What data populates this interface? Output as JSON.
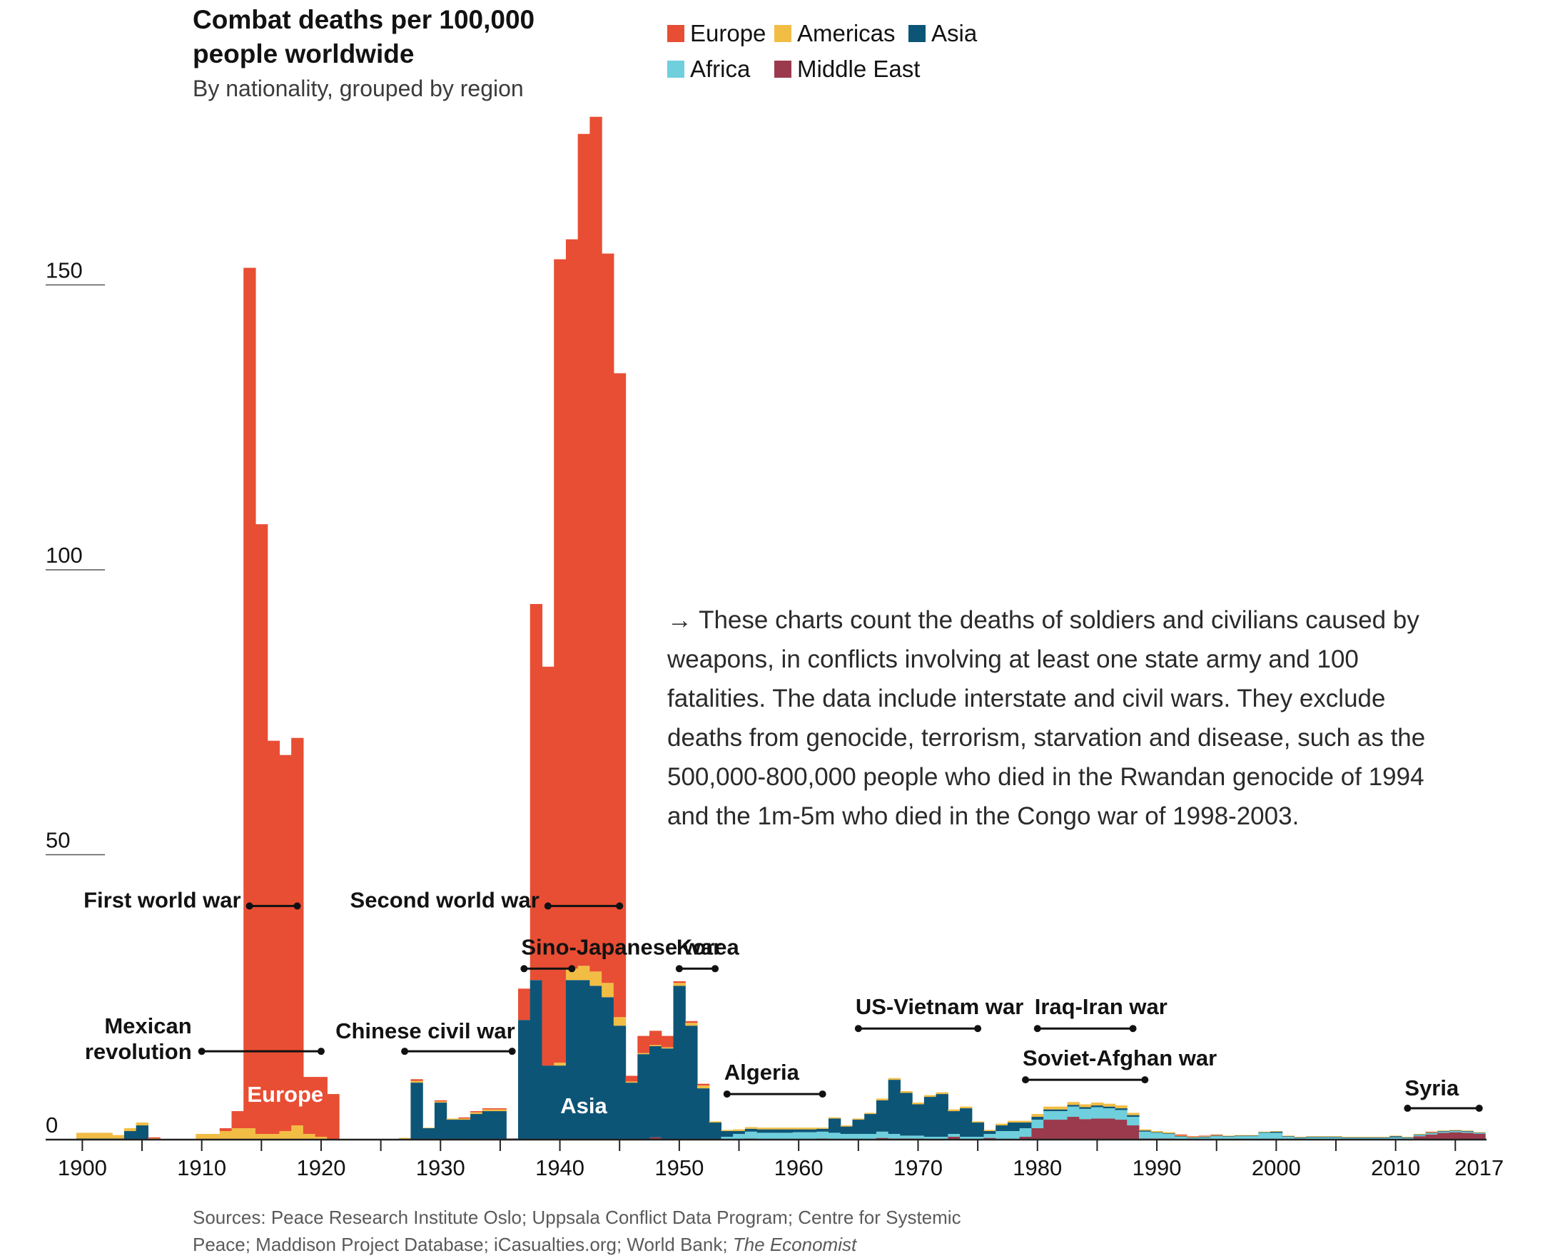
{
  "title": "Combat deaths per 100,000 people worldwide",
  "subtitle": "By nationality, grouped by region",
  "legend": [
    {
      "label": "Europe",
      "color": "#e84e34"
    },
    {
      "label": "Americas",
      "color": "#f2bd44"
    },
    {
      "label": "Asia",
      "color": "#0d5577"
    },
    {
      "label": "Africa",
      "color": "#6fcfdc"
    },
    {
      "label": "Middle East",
      "color": "#9b3a4d"
    }
  ],
  "note": "→ These charts count the deaths of soldiers and civilians caused by weapons, in conflicts involving at least one state army and 100 fatalities. The data include interstate and civil wars. They exclude deaths from genocide, terrorism, starvation and disease, such as the 500,000-800,000 people who died in the Rwandan genocide of 1994 and the 1m-5m who died in the Congo war of 1998-2003.",
  "source_prefix": "Sources: Peace Research Institute Oslo; Uppsala Conflict Data Program; Centre for Systemic Peace; Maddison Project Database; iCasualties.org; World Bank;",
  "source_italic": "The Economist",
  "chart_data": {
    "type": "area",
    "stacked": true,
    "title": "Combat deaths per 100,000 people worldwide",
    "subtitle": "By nationality, grouped by region",
    "xlim": [
      1900,
      2017
    ],
    "ylim": [
      0,
      200
    ],
    "y_ticks": [
      0,
      50,
      100,
      150
    ],
    "x_ticks": [
      1900,
      1910,
      1920,
      1930,
      1940,
      1950,
      1960,
      1970,
      1980,
      1990,
      2000,
      2010,
      2017
    ],
    "grid": false,
    "legend_position": "top",
    "x": [
      1900,
      1901,
      1902,
      1903,
      1904,
      1905,
      1906,
      1907,
      1908,
      1909,
      1910,
      1911,
      1912,
      1913,
      1914,
      1915,
      1916,
      1917,
      1918,
      1919,
      1920,
      1921,
      1922,
      1923,
      1924,
      1925,
      1926,
      1927,
      1928,
      1929,
      1930,
      1931,
      1932,
      1933,
      1934,
      1935,
      1936,
      1937,
      1938,
      1939,
      1940,
      1941,
      1942,
      1943,
      1944,
      1945,
      1946,
      1947,
      1948,
      1949,
      1950,
      1951,
      1952,
      1953,
      1954,
      1955,
      1956,
      1957,
      1958,
      1959,
      1960,
      1961,
      1962,
      1963,
      1964,
      1965,
      1966,
      1967,
      1968,
      1969,
      1970,
      1971,
      1972,
      1973,
      1974,
      1975,
      1976,
      1977,
      1978,
      1979,
      1980,
      1981,
      1982,
      1983,
      1984,
      1985,
      1986,
      1987,
      1988,
      1989,
      1990,
      1991,
      1992,
      1993,
      1994,
      1995,
      1996,
      1997,
      1998,
      1999,
      2000,
      2001,
      2002,
      2003,
      2004,
      2005,
      2006,
      2007,
      2008,
      2009,
      2010,
      2011,
      2012,
      2013,
      2014,
      2015,
      2016,
      2017
    ],
    "series": [
      {
        "name": "Middle East",
        "values": [
          0,
          0,
          0,
          0,
          0,
          0,
          0,
          0,
          0,
          0,
          0,
          0,
          0,
          0,
          0,
          0,
          0,
          0,
          0,
          0,
          0,
          0,
          0,
          0,
          0,
          0,
          0,
          0,
          0,
          0,
          0,
          0,
          0,
          0,
          0,
          0,
          0.2,
          0,
          0,
          0,
          0,
          0,
          0,
          0,
          0,
          0,
          0,
          0,
          0.4,
          0,
          0,
          0,
          0,
          0,
          0,
          0,
          0.2,
          0,
          0,
          0,
          0,
          0,
          0.2,
          0,
          0,
          0,
          0,
          0.3,
          0.2,
          0.2,
          0.2,
          0,
          0,
          0.5,
          0,
          0,
          0.3,
          0,
          0,
          0.5,
          2,
          3.5,
          3.5,
          4,
          3.6,
          3.7,
          3.7,
          3.5,
          2.5,
          0.2,
          0.2,
          0.2,
          0,
          0,
          0,
          0,
          0,
          0,
          0,
          0,
          0,
          0,
          0,
          0.1,
          0.1,
          0.1,
          0.1,
          0.1,
          0.1,
          0.1,
          0.1,
          0.1,
          0.6,
          0.9,
          1.2,
          1.3,
          1.2,
          1
        ]
      },
      {
        "name": "Africa",
        "values": [
          0.1,
          0.1,
          0.1,
          0,
          0,
          0,
          0,
          0,
          0,
          0,
          0,
          0,
          0,
          0,
          0,
          0,
          0,
          0,
          0,
          0,
          0,
          0,
          0,
          0,
          0,
          0,
          0,
          0,
          0,
          0,
          0,
          0,
          0,
          0,
          0,
          0,
          0,
          0,
          0,
          0,
          0,
          0,
          0,
          0,
          0,
          0,
          0,
          0,
          0,
          0,
          0,
          0,
          0,
          0,
          0.5,
          1,
          1.2,
          1.2,
          1.2,
          1.2,
          1.3,
          1.3,
          1.2,
          1.2,
          1,
          1,
          1,
          1.1,
          0.8,
          0.5,
          0.5,
          0.5,
          0.5,
          0.5,
          0.5,
          0.5,
          0.7,
          1.5,
          1.5,
          1.5,
          1.5,
          1.5,
          1.5,
          1.8,
          1.8,
          2,
          1.8,
          1.7,
          1.5,
          1.2,
          1,
          0.8,
          0.5,
          0.3,
          0.4,
          0.6,
          0.5,
          0.6,
          0.6,
          1.2,
          1.2,
          0.5,
          0.3,
          0.3,
          0.3,
          0.3,
          0.2,
          0.2,
          0.2,
          0.2,
          0.3,
          0.2,
          0.2,
          0.2,
          0.2,
          0.2,
          0.2,
          0.1
        ]
      },
      {
        "name": "Asia",
        "values": [
          0.1,
          0.1,
          0.1,
          0.2,
          1.5,
          2.5,
          0,
          0,
          0,
          0,
          0,
          0,
          0,
          0,
          0,
          0,
          0,
          0,
          0,
          0,
          0,
          0,
          0,
          0,
          0,
          0,
          0,
          0,
          10,
          2,
          6.5,
          3.5,
          3.5,
          4.5,
          5,
          5,
          0,
          21,
          28,
          13,
          13,
          28,
          28,
          27,
          25,
          20,
          10,
          15,
          16,
          16,
          27,
          20,
          9,
          3,
          1,
          0.5,
          0.5,
          0.6,
          0.6,
          0.6,
          0.5,
          0.5,
          0.5,
          2.5,
          1.3,
          2.5,
          3.5,
          5.5,
          9.5,
          7.5,
          5.5,
          7,
          7.5,
          4,
          5,
          2.5,
          0.5,
          1,
          1.5,
          1,
          0.5,
          0.3,
          0.3,
          0.3,
          0.3,
          0.3,
          0.3,
          0.3,
          0.3,
          0.2,
          0.1,
          0.1,
          0.1,
          0.1,
          0.1,
          0.1,
          0.1,
          0.1,
          0.1,
          0.1,
          0.2,
          0.1,
          0.1,
          0.1,
          0.1,
          0.1,
          0.1,
          0.1,
          0.1,
          0.1,
          0.2,
          0.1,
          0.1,
          0.1,
          0.1,
          0.1,
          0.1,
          0.1
        ]
      },
      {
        "name": "Americas",
        "values": [
          1,
          1,
          1,
          0.6,
          0.5,
          0.5,
          0.2,
          0,
          0,
          0,
          1,
          1,
          1.5,
          2,
          2,
          1,
          1,
          1.5,
          2.5,
          1,
          0.5,
          0,
          0,
          0,
          0,
          0,
          0,
          0.3,
          0.3,
          0.1,
          0.2,
          0.2,
          0.2,
          0.3,
          0.3,
          0.3,
          0,
          0,
          0,
          0,
          0.5,
          2,
          2.5,
          2.5,
          2.5,
          1.5,
          0.2,
          0.2,
          0.2,
          0.2,
          0.5,
          0.5,
          0.5,
          0.2,
          0.2,
          0.3,
          0.3,
          0.3,
          0.3,
          0.3,
          0.3,
          0.3,
          0.2,
          0.2,
          0.2,
          0.2,
          0.2,
          0.3,
          0.3,
          0.3,
          0.3,
          0.3,
          0.3,
          0.3,
          0.3,
          0.2,
          0.2,
          0.3,
          0.3,
          0.3,
          0.5,
          0.5,
          0.5,
          0.5,
          0.5,
          0.5,
          0.5,
          0.5,
          0.4,
          0.2,
          0.2,
          0.2,
          0.1,
          0.1,
          0.1,
          0.1,
          0.1,
          0.1,
          0.1,
          0.1,
          0.1,
          0.1,
          0.1,
          0.1,
          0.1,
          0.1,
          0.1,
          0.1,
          0.1,
          0.1,
          0.1,
          0.1,
          0.1,
          0.1,
          0.1,
          0.1,
          0.1,
          0.1
        ]
      },
      {
        "name": "Europe",
        "values": [
          0,
          0,
          0,
          0,
          0,
          0,
          0.2,
          0,
          0,
          0,
          0,
          0,
          0.5,
          3,
          151,
          107,
          69,
          66,
          68,
          10,
          10.5,
          8,
          0,
          0,
          0,
          0,
          0,
          0,
          0.3,
          0,
          0.2,
          0,
          0.2,
          0.2,
          0.2,
          0.2,
          0,
          5.5,
          66,
          70,
          141,
          128,
          146,
          150,
          128,
          113,
          1,
          3,
          2.5,
          2,
          0.3,
          0.3,
          0.3,
          0,
          0,
          0,
          0,
          0,
          0,
          0,
          0,
          0,
          0,
          0,
          0,
          0,
          0,
          0,
          0,
          0,
          0,
          0,
          0,
          0,
          0,
          0,
          0,
          0,
          0,
          0,
          0,
          0,
          0,
          0,
          0,
          0,
          0,
          0,
          0,
          0,
          0,
          0,
          0.2,
          0.1,
          0.1,
          0.1,
          0,
          0,
          0,
          0,
          0,
          0,
          0,
          0,
          0,
          0,
          0,
          0,
          0,
          0,
          0,
          0,
          0,
          0.1,
          0,
          0,
          0,
          0
        ]
      }
    ],
    "annotations": [
      {
        "label": "First world war",
        "start": 1914,
        "end": 1918,
        "y": 41
      },
      {
        "label": "Second world war",
        "start": 1939,
        "end": 1945,
        "y": 41
      },
      {
        "label": "Sino-Japanese war",
        "start": 1937,
        "end": 1941,
        "y": 30
      },
      {
        "label": "Korea",
        "start": 1950,
        "end": 1953,
        "y": 30
      },
      {
        "label": "Mexican revolution",
        "start": 1910,
        "end": 1920,
        "y": 15.5
      },
      {
        "label": "Chinese civil war",
        "start": 1927,
        "end": 1936,
        "y": 15.5
      },
      {
        "label": "US-Vietnam war",
        "start": 1965,
        "end": 1975,
        "y": 19.5
      },
      {
        "label": "Iraq-Iran war",
        "start": 1980,
        "end": 1988,
        "y": 19.5
      },
      {
        "label": "Soviet-Afghan war",
        "start": 1979,
        "end": 1989,
        "y": 10.5
      },
      {
        "label": "Algeria",
        "start": 1954,
        "end": 1962,
        "y": 8
      },
      {
        "label": "Syria",
        "start": 2011,
        "end": 2017,
        "y": 5.5
      }
    ],
    "inbar_labels": [
      {
        "label": "Europe",
        "x": 1917.5,
        "y": 8
      },
      {
        "label": "Asia",
        "x": 1942.5,
        "y": 6
      }
    ]
  }
}
